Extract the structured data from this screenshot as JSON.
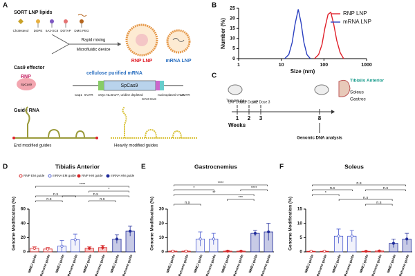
{
  "panel_labels": [
    "A",
    "B",
    "C",
    "D",
    "E",
    "F"
  ],
  "schematic_a": {
    "lipids_title": "SORT LNP lipids",
    "lipids": [
      "Cholesterol",
      "DOPE",
      "5A2-SC8",
      "DOTAP",
      "DMG PEG"
    ],
    "process": [
      "Rapid mixing",
      "Microfluidic device"
    ],
    "products": [
      "RNP LNP",
      "mRNA LNP"
    ],
    "cas9_title": "Cas9 effector",
    "rnp": "RNP",
    "rnp_protein": "SpCas9",
    "mrna_title": "cellulose purified mRNA",
    "construct_main": "SpCas9",
    "construct_parts": [
      "Cap1",
      "5'UTR",
      "cMyc NLS",
      "m1Ψ, uridine depleted",
      "SV40 NLS",
      "nucleoplasmin NLS",
      "3'UTR"
    ],
    "guide_title": "Guide RNA",
    "guides": [
      "End modified guides",
      "Heavily modified guides"
    ]
  },
  "schematic_c": {
    "mouse": "Trap mouse",
    "doses": [
      "LNP Dose1",
      "LNP Dose2",
      "LNP Dose 3"
    ],
    "weeks_label": "Weeks",
    "weeks": [
      1,
      2,
      3,
      8
    ],
    "analysis": "Genomic DNA analysis",
    "tissues": [
      "Tibialis Anterior",
      "Soleus",
      "Gastroc"
    ]
  },
  "chart_data": [
    {
      "type": "line",
      "xlabel": "Size (nm)",
      "ylabel": "Number (%)",
      "log_x": true,
      "xlim": [
        1,
        1000
      ],
      "xticks": [
        1,
        10,
        100,
        1000
      ],
      "ylim": [
        0,
        25
      ],
      "yticks": [
        0,
        5,
        10,
        15,
        20,
        25
      ],
      "legend": "upper right",
      "series": [
        {
          "name": "RNP LNP",
          "color": "#e0202a",
          "x": [
            60,
            75,
            90,
            105,
            125,
            145,
            170,
            200,
            240,
            290
          ],
          "values": [
            0,
            2,
            7,
            15,
            22,
            23,
            17,
            9,
            3,
            0
          ]
        },
        {
          "name": "mRNA LNP",
          "color": "#2a3fc0",
          "x": [
            12,
            15,
            18,
            21,
            25,
            29,
            34,
            40,
            48
          ],
          "values": [
            0,
            2,
            8,
            17,
            24.5,
            18,
            8,
            2,
            0
          ]
        }
      ]
    },
    {
      "type": "bar",
      "title": "Tibialis Anterior",
      "ylabel": "Genome Modification (%)",
      "categories": [
        "MMEJ guide",
        "Retrame guide",
        "MMEJ guide",
        "Retrame guide",
        "MMEJ guide",
        "Retrame guide",
        "MMEJ guide",
        "Retrame guide"
      ],
      "values": [
        5,
        4,
        8,
        17,
        5,
        6,
        18,
        29
      ],
      "errors": [
        2,
        2,
        8,
        8,
        2,
        3,
        6,
        7
      ],
      "ylim": [
        0,
        60
      ],
      "yticks": [
        0,
        20,
        40,
        60
      ],
      "legend": [
        {
          "name": "RNP EM guide",
          "color": "#d62728",
          "filled": false
        },
        {
          "name": "mRNA EM guide",
          "color": "#4a5bd0",
          "filled": false
        },
        {
          "name": "RNP HM guide",
          "color": "#d62728",
          "filled": true
        },
        {
          "name": "mRNA HM guide",
          "color": "#1f2a9a",
          "filled": true
        }
      ],
      "sig_labels": [
        "****",
        "*",
        "n.s",
        "n.s",
        "n.s",
        "n.s"
      ]
    },
    {
      "type": "bar",
      "title": "Gastrocnemius",
      "ylabel": "Genome Modification (%)",
      "categories": [
        "MMEJ guide",
        "Retrame guide",
        "MMEJ guide",
        "Retrame guide",
        "MMEJ guide",
        "Retrame guide",
        "MMEJ guide",
        "Retrame guide"
      ],
      "values": [
        0.5,
        0.5,
        9,
        9,
        0.5,
        0.5,
        13,
        14
      ],
      "errors": [
        0.3,
        0.3,
        5,
        4,
        0.5,
        0.3,
        2,
        6
      ],
      "ylim": [
        0,
        30
      ],
      "yticks": [
        0,
        10,
        20,
        30
      ],
      "bar_colors": [
        "#d62728",
        "#4a5bd0",
        "#d62728",
        "#1f2a9a"
      ],
      "filled": [
        false,
        false,
        true,
        true
      ],
      "sig_labels": [
        "****",
        "*",
        "****",
        "**",
        "***",
        "n.s"
      ]
    },
    {
      "type": "bar",
      "title": "Soleus",
      "ylabel": "Genome Modification (%)",
      "categories": [
        "MMEJ guide",
        "Retrame guide",
        "MMEJ guide",
        "Retrame guide",
        "MMEJ guide",
        "Retrame guide",
        "MMEJ guide",
        "Retrame guide"
      ],
      "values": [
        0.2,
        0.2,
        5.5,
        5.5,
        0.2,
        0.3,
        3,
        4.5
      ],
      "errors": [
        0.1,
        0.1,
        2.5,
        2,
        0.1,
        0.1,
        1.5,
        2
      ],
      "ylim": [
        0,
        15
      ],
      "yticks": [
        0,
        5,
        10,
        15
      ],
      "bar_colors": [
        "#d62728",
        "#4a5bd0",
        "#d62728",
        "#1f2a9a"
      ],
      "filled": [
        false,
        false,
        true,
        true
      ],
      "sig_labels": [
        "n.s",
        "n.s",
        "n.s",
        "*",
        "n.s",
        "n.s"
      ]
    }
  ]
}
